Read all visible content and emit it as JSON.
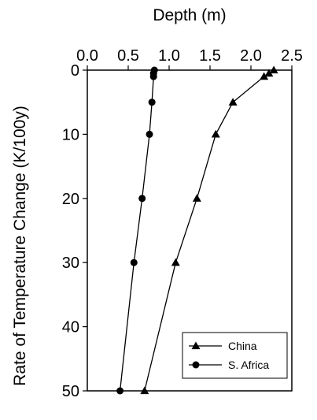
{
  "chart_data": {
    "type": "line",
    "title": "",
    "xlabel": "Depth (m)",
    "ylabel": "Rate of Temperature Change (K/100y)",
    "x_axis_position": "top",
    "y_axis_inverted": true,
    "xlim": [
      0,
      2.5
    ],
    "ylim": [
      0,
      50
    ],
    "x_ticks": [
      "0.0",
      "0.5",
      "1.0",
      "1.5",
      "2.0",
      "2.5"
    ],
    "y_ticks": [
      "0",
      "10",
      "20",
      "30",
      "40",
      "50"
    ],
    "grid": false,
    "legend_position": "bottom-right",
    "series": [
      {
        "name": "China",
        "marker": "triangle",
        "color": "#000000",
        "points": [
          {
            "x": 2.28,
            "y": 0
          },
          {
            "x": 2.22,
            "y": 0.5
          },
          {
            "x": 2.16,
            "y": 1
          },
          {
            "x": 1.78,
            "y": 5
          },
          {
            "x": 1.57,
            "y": 10
          },
          {
            "x": 1.34,
            "y": 20
          },
          {
            "x": 1.08,
            "y": 30
          },
          {
            "x": 0.7,
            "y": 50
          }
        ]
      },
      {
        "name": "S. Africa",
        "marker": "circle",
        "color": "#000000",
        "points": [
          {
            "x": 0.82,
            "y": 0
          },
          {
            "x": 0.81,
            "y": 0.5
          },
          {
            "x": 0.81,
            "y": 1
          },
          {
            "x": 0.79,
            "y": 5
          },
          {
            "x": 0.76,
            "y": 10
          },
          {
            "x": 0.67,
            "y": 20
          },
          {
            "x": 0.57,
            "y": 30
          },
          {
            "x": 0.4,
            "y": 50
          }
        ]
      }
    ]
  }
}
